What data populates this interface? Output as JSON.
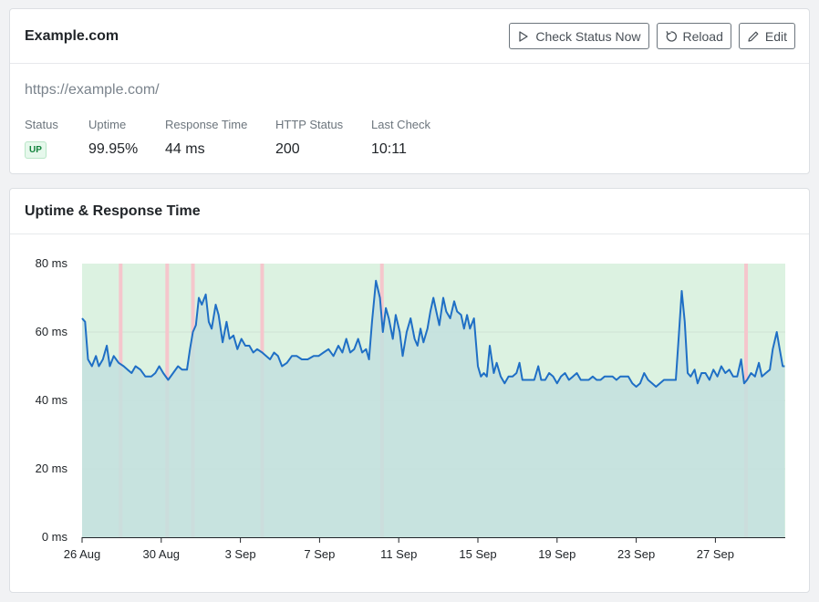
{
  "monitor": {
    "title": "Example.com",
    "url": "https://example.com/",
    "buttons": {
      "check_label": "Check Status Now",
      "reload_label": "Reload",
      "edit_label": "Edit"
    },
    "stats": {
      "status_label": "Status",
      "status_value": "UP",
      "uptime_label": "Uptime",
      "uptime_value": "99.95%",
      "response_label": "Response Time",
      "response_value": "44 ms",
      "http_label": "HTTP Status",
      "http_value": "200",
      "lastcheck_label": "Last Check",
      "lastcheck_value": "10:11"
    }
  },
  "chart_section": {
    "title": "Uptime & Response Time"
  },
  "colors": {
    "up_band": "#dcf2e1",
    "down_band": "#f5c6cc",
    "line": "#1f6fc5",
    "area": "#c3e0de"
  },
  "chart_data": {
    "type": "area",
    "ylabel_unit": "ms",
    "ylim": [
      0,
      80
    ],
    "yticks": [
      "0 ms",
      "20 ms",
      "40 ms",
      "60 ms",
      "80 ms"
    ],
    "x_range_days": [
      0,
      35.5
    ],
    "xticks": [
      {
        "day": 0,
        "label": "26 Aug"
      },
      {
        "day": 4,
        "label": "30 Aug"
      },
      {
        "day": 8,
        "label": "3 Sep"
      },
      {
        "day": 12,
        "label": "7 Sep"
      },
      {
        "day": 16,
        "label": "11 Sep"
      },
      {
        "day": 20,
        "label": "15 Sep"
      },
      {
        "day": 24,
        "label": "19 Sep"
      },
      {
        "day": 28,
        "label": "23 Sep"
      },
      {
        "day": 32,
        "label": "27 Sep"
      }
    ],
    "downtime_days": [
      1.95,
      4.3,
      5.6,
      9.1,
      15.15,
      33.55
    ],
    "series": [
      {
        "name": "Response Time",
        "points": [
          [
            0,
            64
          ],
          [
            0.15,
            63
          ],
          [
            0.3,
            52
          ],
          [
            0.5,
            50
          ],
          [
            0.7,
            53
          ],
          [
            0.85,
            50
          ],
          [
            1.05,
            52
          ],
          [
            1.25,
            56
          ],
          [
            1.4,
            50
          ],
          [
            1.6,
            53
          ],
          [
            1.85,
            51
          ],
          [
            2.1,
            50
          ],
          [
            2.3,
            49
          ],
          [
            2.5,
            48
          ],
          [
            2.7,
            50
          ],
          [
            2.95,
            49
          ],
          [
            3.2,
            47
          ],
          [
            3.5,
            47
          ],
          [
            3.7,
            48
          ],
          [
            3.9,
            50
          ],
          [
            4.1,
            48
          ],
          [
            4.35,
            46
          ],
          [
            4.6,
            48
          ],
          [
            4.85,
            50
          ],
          [
            5.05,
            49
          ],
          [
            5.3,
            49
          ],
          [
            5.45,
            55
          ],
          [
            5.6,
            60
          ],
          [
            5.75,
            62
          ],
          [
            5.9,
            70
          ],
          [
            6.05,
            68
          ],
          [
            6.25,
            71
          ],
          [
            6.4,
            63
          ],
          [
            6.55,
            61
          ],
          [
            6.75,
            68
          ],
          [
            6.9,
            65
          ],
          [
            7.1,
            57
          ],
          [
            7.3,
            63
          ],
          [
            7.45,
            58
          ],
          [
            7.65,
            59
          ],
          [
            7.85,
            55
          ],
          [
            8.05,
            58
          ],
          [
            8.25,
            56
          ],
          [
            8.45,
            56
          ],
          [
            8.65,
            54
          ],
          [
            8.85,
            55
          ],
          [
            9.1,
            54
          ],
          [
            9.3,
            53
          ],
          [
            9.5,
            52
          ],
          [
            9.7,
            54
          ],
          [
            9.9,
            53
          ],
          [
            10.1,
            50
          ],
          [
            10.35,
            51
          ],
          [
            10.6,
            53
          ],
          [
            10.85,
            53
          ],
          [
            11.1,
            52
          ],
          [
            11.4,
            52
          ],
          [
            11.7,
            53
          ],
          [
            11.95,
            53
          ],
          [
            12.2,
            54
          ],
          [
            12.45,
            55
          ],
          [
            12.7,
            53
          ],
          [
            12.95,
            56
          ],
          [
            13.15,
            54
          ],
          [
            13.35,
            58
          ],
          [
            13.55,
            54
          ],
          [
            13.75,
            55
          ],
          [
            13.95,
            58
          ],
          [
            14.15,
            54
          ],
          [
            14.35,
            55
          ],
          [
            14.5,
            52
          ],
          [
            14.65,
            63
          ],
          [
            14.85,
            75
          ],
          [
            15.05,
            70
          ],
          [
            15.2,
            60
          ],
          [
            15.35,
            67
          ],
          [
            15.5,
            64
          ],
          [
            15.7,
            58
          ],
          [
            15.85,
            65
          ],
          [
            16.05,
            60
          ],
          [
            16.2,
            53
          ],
          [
            16.4,
            60
          ],
          [
            16.6,
            64
          ],
          [
            16.8,
            58
          ],
          [
            16.95,
            56
          ],
          [
            17.1,
            61
          ],
          [
            17.25,
            57
          ],
          [
            17.45,
            61
          ],
          [
            17.6,
            66
          ],
          [
            17.75,
            70
          ],
          [
            17.9,
            66
          ],
          [
            18.05,
            62
          ],
          [
            18.25,
            70
          ],
          [
            18.4,
            66
          ],
          [
            18.6,
            64
          ],
          [
            18.8,
            69
          ],
          [
            18.95,
            66
          ],
          [
            19.15,
            65
          ],
          [
            19.3,
            61
          ],
          [
            19.45,
            65
          ],
          [
            19.6,
            61
          ],
          [
            19.8,
            64
          ],
          [
            20.0,
            50
          ],
          [
            20.15,
            47
          ],
          [
            20.3,
            48
          ],
          [
            20.45,
            47
          ],
          [
            20.6,
            56
          ],
          [
            20.8,
            48
          ],
          [
            20.95,
            51
          ],
          [
            21.15,
            47
          ],
          [
            21.35,
            45
          ],
          [
            21.55,
            47
          ],
          [
            21.75,
            47
          ],
          [
            21.95,
            48
          ],
          [
            22.1,
            51
          ],
          [
            22.25,
            46
          ],
          [
            22.45,
            46
          ],
          [
            22.65,
            46
          ],
          [
            22.85,
            46
          ],
          [
            23.05,
            50
          ],
          [
            23.2,
            46
          ],
          [
            23.4,
            46
          ],
          [
            23.6,
            48
          ],
          [
            23.8,
            47
          ],
          [
            24.0,
            45
          ],
          [
            24.2,
            47
          ],
          [
            24.4,
            48
          ],
          [
            24.6,
            46
          ],
          [
            24.8,
            47
          ],
          [
            25.0,
            48
          ],
          [
            25.2,
            46
          ],
          [
            25.4,
            46
          ],
          [
            25.6,
            46
          ],
          [
            25.8,
            47
          ],
          [
            26.0,
            46
          ],
          [
            26.2,
            46
          ],
          [
            26.4,
            47
          ],
          [
            26.6,
            47
          ],
          [
            26.8,
            47
          ],
          [
            27.0,
            46
          ],
          [
            27.2,
            47
          ],
          [
            27.45,
            47
          ],
          [
            27.6,
            47
          ],
          [
            27.8,
            45
          ],
          [
            28.0,
            44
          ],
          [
            28.2,
            45
          ],
          [
            28.4,
            48
          ],
          [
            28.6,
            46
          ],
          [
            28.8,
            45
          ],
          [
            29.0,
            44
          ],
          [
            29.2,
            45
          ],
          [
            29.4,
            46
          ],
          [
            29.6,
            46
          ],
          [
            29.8,
            46
          ],
          [
            30.0,
            46
          ],
          [
            30.15,
            59
          ],
          [
            30.3,
            72
          ],
          [
            30.45,
            63
          ],
          [
            30.6,
            48
          ],
          [
            30.75,
            47
          ],
          [
            30.95,
            49
          ],
          [
            31.1,
            45
          ],
          [
            31.3,
            48
          ],
          [
            31.5,
            48
          ],
          [
            31.7,
            46
          ],
          [
            31.9,
            49
          ],
          [
            32.1,
            47
          ],
          [
            32.3,
            50
          ],
          [
            32.5,
            48
          ],
          [
            32.7,
            49
          ],
          [
            32.9,
            47
          ],
          [
            33.1,
            47
          ],
          [
            33.3,
            52
          ],
          [
            33.45,
            45
          ],
          [
            33.6,
            46
          ],
          [
            33.8,
            48
          ],
          [
            34.0,
            47
          ],
          [
            34.2,
            51
          ],
          [
            34.35,
            47
          ],
          [
            34.55,
            48
          ],
          [
            34.75,
            49
          ],
          [
            34.9,
            55
          ],
          [
            35.1,
            60
          ],
          [
            35.25,
            55
          ],
          [
            35.4,
            50
          ],
          [
            35.5,
            50
          ]
        ]
      }
    ]
  }
}
